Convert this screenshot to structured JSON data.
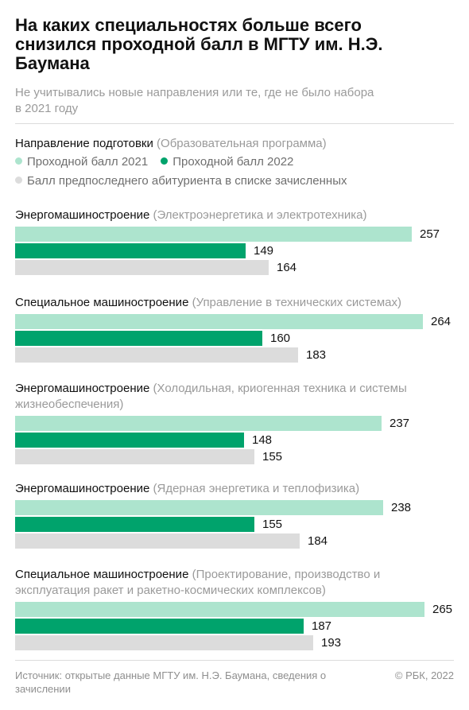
{
  "header": {
    "title": "На каких специальностях больше всего снизился проходной балл в МГТУ им. Н.Э. Баумана",
    "subtitle": "Не учитывались новые направления или те, где не было набора в 2021 году"
  },
  "legend": {
    "direction_label": "Направление подготовки",
    "program_label": "(Образовательная программа)",
    "items": [
      {
        "label": "Проходной балл 2021",
        "color": "#ade4ce"
      },
      {
        "label": "Проходной балл 2022",
        "color": "#00a36c"
      },
      {
        "label": "Балл предпоследнего абитуриента в списке зачисленных",
        "color": "#dcdcdc"
      }
    ]
  },
  "chart_data": {
    "type": "bar",
    "orientation": "horizontal",
    "categories": [
      {
        "direction": "Энергомашиностроение",
        "program": "(Электроэнергетика и электротехника)"
      },
      {
        "direction": "Специальное машиностроение",
        "program": "(Управление в технических системах)"
      },
      {
        "direction": "Энергомашиностроение",
        "program": "(Холодильная, криогенная техника и системы жизнеобеспечения)"
      },
      {
        "direction": "Энергомашиностроение",
        "program": "(Ядерная энергетика и теплофизика)"
      },
      {
        "direction": "Специальное машиностроение",
        "program": "(Проектирование, производство и эксплуатация ракет и ракетно-космических комплексов)"
      }
    ],
    "series": [
      {
        "name": "Проходной балл 2021",
        "color": "#ade4ce",
        "values": [
          257,
          264,
          237,
          238,
          265
        ]
      },
      {
        "name": "Проходной балл 2022",
        "color": "#00a36c",
        "values": [
          149,
          160,
          148,
          155,
          187
        ]
      },
      {
        "name": "Балл предпоследнего абитуриента в списке зачисленных",
        "color": "#dcdcdc",
        "values": [
          164,
          183,
          155,
          184,
          193
        ]
      }
    ],
    "xlim": [
      0,
      265
    ]
  },
  "footer": {
    "source": "Источник: открытые данные МГТУ им. Н.Э. Баумана, сведения о зачислении",
    "copyright": "© РБК, 2022"
  }
}
